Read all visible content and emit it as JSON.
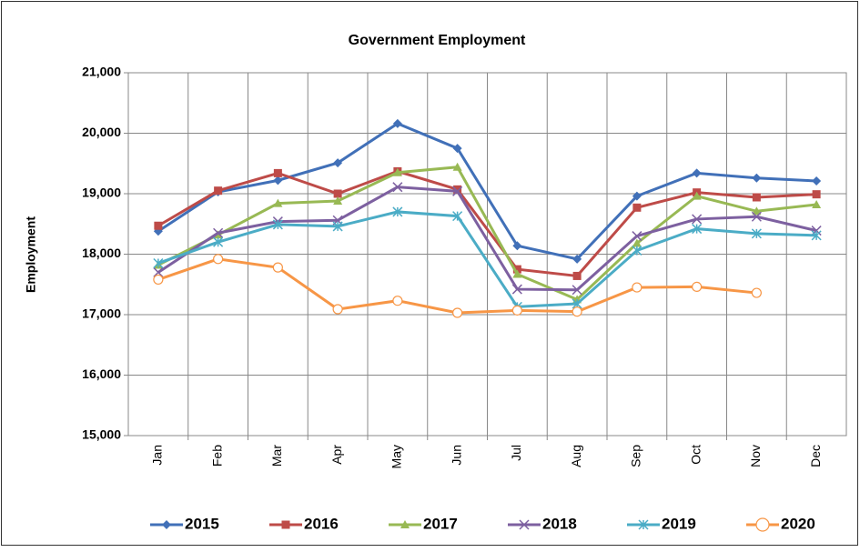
{
  "chart_data": {
    "type": "line",
    "title": "Government Employment",
    "y_label": "Employment",
    "categories": [
      "Jan",
      "Feb",
      "Mar",
      "Apr",
      "May",
      "Jun",
      "Jul",
      "Aug",
      "Sep",
      "Oct",
      "Nov",
      "Dec"
    ],
    "series": [
      {
        "name": "2015",
        "color": "#4170b8",
        "marker": "diamond",
        "values": [
          18380,
          19030,
          19220,
          19510,
          20160,
          19750,
          18140,
          17920,
          18960,
          19340,
          19260,
          19210
        ]
      },
      {
        "name": "2016",
        "color": "#be4b48",
        "marker": "square",
        "values": [
          18470,
          19050,
          19340,
          19000,
          19370,
          19070,
          17750,
          17640,
          18770,
          19020,
          18940,
          18990
        ]
      },
      {
        "name": "2017",
        "color": "#98b954",
        "marker": "triangle",
        "values": [
          17820,
          18320,
          18840,
          18880,
          19350,
          19440,
          17670,
          17250,
          18180,
          18960,
          18710,
          18820
        ]
      },
      {
        "name": "2018",
        "color": "#7d60a0",
        "marker": "x",
        "values": [
          17700,
          18350,
          18540,
          18560,
          19110,
          19040,
          17420,
          17410,
          18300,
          18580,
          18620,
          18390
        ]
      },
      {
        "name": "2019",
        "color": "#4bacc6",
        "marker": "star",
        "values": [
          17850,
          18200,
          18490,
          18460,
          18700,
          18630,
          17130,
          17180,
          18060,
          18420,
          18340,
          18310
        ]
      },
      {
        "name": "2020",
        "color": "#f79646",
        "marker": "circle",
        "values": [
          17580,
          17920,
          17780,
          17090,
          17230,
          17030,
          17070,
          17050,
          17450,
          17460,
          17360,
          null
        ]
      }
    ],
    "ylim": [
      15000,
      21000
    ],
    "yticks": [
      {
        "value": 15000,
        "label": "15,000"
      },
      {
        "value": 16000,
        "label": "16,000"
      },
      {
        "value": 17000,
        "label": "17,000"
      },
      {
        "value": 18000,
        "label": "18,000"
      },
      {
        "value": 19000,
        "label": "19,000"
      },
      {
        "value": 20000,
        "label": "20,000"
      },
      {
        "value": 21000,
        "label": "21,000"
      }
    ],
    "grid": true,
    "legend": "bottom"
  }
}
